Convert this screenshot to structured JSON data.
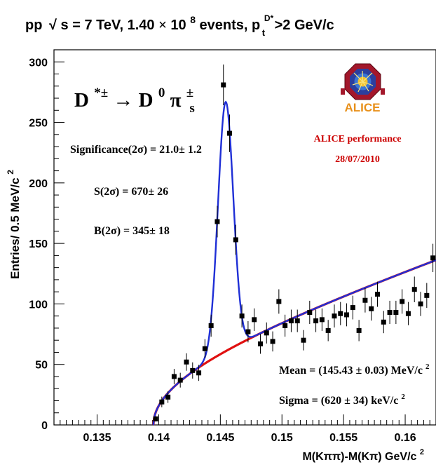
{
  "header": {
    "title_pp": "pp",
    "title_sqrt_s": "s",
    "title_energy": "= 7 TeV, 1.40",
    "title_times": "×",
    "title_ten": " 10",
    "title_exp": "8",
    "title_events": " events, p",
    "title_sub_t": "t",
    "title_sup": "D*",
    "title_cut": " >2 GeV/c"
  },
  "annotations": {
    "decay_d": "D",
    "decay_d_sup": "*±",
    "decay_arrow": "→",
    "decay_d0": " D",
    "decay_d0_sup": "0",
    "decay_pi": " π",
    "decay_pi_sup": "±",
    "decay_pi_sub": "s",
    "significance": "Significance(2σ) = 21.0± 1.2",
    "signal": "S(2σ) = 670± 26",
    "background": "B(2σ) = 345± 18",
    "mean_pre": "Mean = (145.43 ± 0.03) MeV/c",
    "mean_sup": "2",
    "sigma_pre": "Sigma = (620 ± 34) keV/c",
    "sigma_sup": "2",
    "performance": "ALICE performance",
    "date": "28/07/2010",
    "logo_text": "ALICE"
  },
  "colors": {
    "fit": "#1f2fd6",
    "background_fit": "#e01010",
    "performance_text": "#cc0000",
    "logo_text": "#e8901a",
    "points": "#000000"
  },
  "chart_data": {
    "type": "scatter",
    "xlabel_pre": "M(Kππ)-M(Kπ) GeV/c",
    "xlabel_sup": "2",
    "ylabel_pre": "Entries/ 0.5 MeV/c",
    "ylabel_sup": "2",
    "xlim": [
      0.1315,
      0.1625
    ],
    "ylim": [
      0,
      310
    ],
    "xticks": [
      0.135,
      0.14,
      0.145,
      0.15,
      0.155,
      0.16
    ],
    "xtick_labels": [
      "0.135",
      "0.14",
      "0.145",
      "0.15",
      "0.155",
      "0.16"
    ],
    "yticks": [
      0,
      50,
      100,
      150,
      200,
      250,
      300
    ],
    "ytick_labels": [
      "0",
      "50",
      "100",
      "150",
      "200",
      "250",
      "300"
    ],
    "grid": false,
    "points": [
      {
        "x": 0.13975,
        "y": 5,
        "err": 2.2
      },
      {
        "x": 0.14025,
        "y": 19,
        "err": 4.4
      },
      {
        "x": 0.14075,
        "y": 23,
        "err": 4.8
      },
      {
        "x": 0.14125,
        "y": 40,
        "err": 6.3
      },
      {
        "x": 0.14175,
        "y": 37,
        "err": 6.1
      },
      {
        "x": 0.14225,
        "y": 52,
        "err": 7.2
      },
      {
        "x": 0.14275,
        "y": 45,
        "err": 6.7
      },
      {
        "x": 0.14325,
        "y": 43,
        "err": 6.6
      },
      {
        "x": 0.14375,
        "y": 63,
        "err": 7.9
      },
      {
        "x": 0.14425,
        "y": 82,
        "err": 9.1
      },
      {
        "x": 0.14475,
        "y": 168,
        "err": 13
      },
      {
        "x": 0.14525,
        "y": 281,
        "err": 16.8
      },
      {
        "x": 0.14575,
        "y": 241,
        "err": 15.5
      },
      {
        "x": 0.14625,
        "y": 153,
        "err": 12.4
      },
      {
        "x": 0.14675,
        "y": 90,
        "err": 9.5
      },
      {
        "x": 0.14725,
        "y": 77,
        "err": 8.8
      },
      {
        "x": 0.14775,
        "y": 87,
        "err": 9.3
      },
      {
        "x": 0.14825,
        "y": 67,
        "err": 8.2
      },
      {
        "x": 0.14875,
        "y": 76,
        "err": 8.7
      },
      {
        "x": 0.14925,
        "y": 69,
        "err": 8.3
      },
      {
        "x": 0.14975,
        "y": 102,
        "err": 10.1
      },
      {
        "x": 0.15025,
        "y": 82,
        "err": 9.1
      },
      {
        "x": 0.15075,
        "y": 86,
        "err": 9.3
      },
      {
        "x": 0.15125,
        "y": 86,
        "err": 9.3
      },
      {
        "x": 0.15175,
        "y": 70,
        "err": 8.4
      },
      {
        "x": 0.15225,
        "y": 93,
        "err": 9.6
      },
      {
        "x": 0.15275,
        "y": 86,
        "err": 9.3
      },
      {
        "x": 0.15325,
        "y": 87,
        "err": 9.3
      },
      {
        "x": 0.15375,
        "y": 78,
        "err": 8.8
      },
      {
        "x": 0.15425,
        "y": 90,
        "err": 9.5
      },
      {
        "x": 0.15475,
        "y": 92,
        "err": 9.6
      },
      {
        "x": 0.15525,
        "y": 91,
        "err": 9.5
      },
      {
        "x": 0.15575,
        "y": 97,
        "err": 9.8
      },
      {
        "x": 0.15625,
        "y": 78,
        "err": 8.8
      },
      {
        "x": 0.15675,
        "y": 103,
        "err": 10.1
      },
      {
        "x": 0.15725,
        "y": 96,
        "err": 9.8
      },
      {
        "x": 0.15775,
        "y": 108,
        "err": 10.4
      },
      {
        "x": 0.15825,
        "y": 85,
        "err": 9.2
      },
      {
        "x": 0.15875,
        "y": 93,
        "err": 9.6
      },
      {
        "x": 0.15925,
        "y": 93,
        "err": 9.6
      },
      {
        "x": 0.15975,
        "y": 102,
        "err": 10.1
      },
      {
        "x": 0.16025,
        "y": 92,
        "err": 9.6
      },
      {
        "x": 0.16075,
        "y": 112,
        "err": 10.6
      },
      {
        "x": 0.16125,
        "y": 100,
        "err": 10
      },
      {
        "x": 0.16175,
        "y": 107,
        "err": 10.3
      },
      {
        "x": 0.16225,
        "y": 138,
        "err": 11.7
      }
    ],
    "fit_model": {
      "threshold": 0.13957,
      "bkg_norm": 76,
      "bkg_power": 0.5,
      "bkg_slope": 8,
      "mean": 0.14543,
      "sigma": 0.00062,
      "amplitude": 206
    }
  }
}
